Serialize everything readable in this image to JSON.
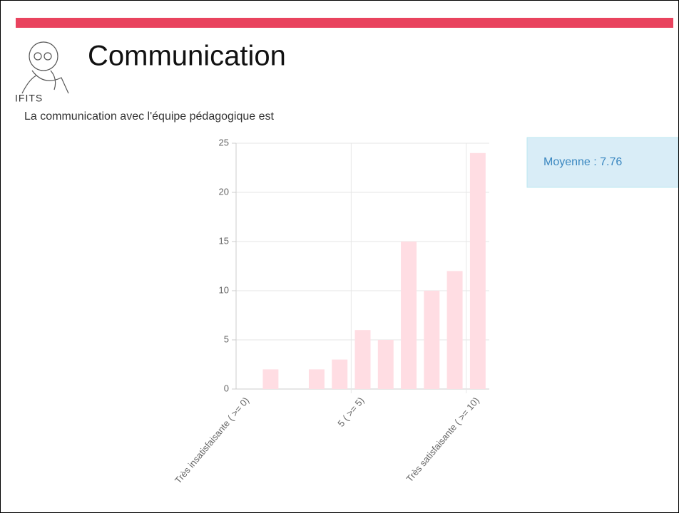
{
  "header": {
    "title": "Communication",
    "logo_text": "IFITS"
  },
  "question": "La communication avec l'équipe pédagogique est",
  "summary": "Moyenne : 7.76",
  "chart_data": {
    "type": "bar",
    "categories": [
      "Très insatisfaisante ( >= 0)",
      null,
      null,
      null,
      null,
      "5 ( >= 5)",
      null,
      null,
      null,
      null,
      "Très satisfaisante ( >= 10)"
    ],
    "values": [
      0,
      2,
      0,
      2,
      3,
      6,
      5,
      15,
      10,
      12,
      24
    ],
    "color": "#ffdde3",
    "ylim": [
      0,
      25
    ],
    "yticks": [
      0,
      5,
      10,
      15,
      20,
      25
    ],
    "grid": true
  }
}
